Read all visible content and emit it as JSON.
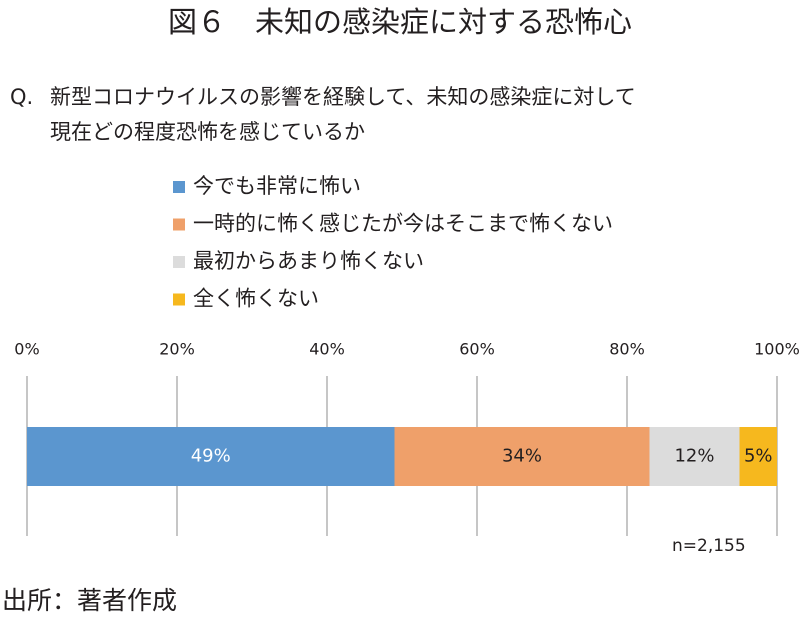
{
  "chart_data": {
    "type": "stacked_bar_horizontal",
    "title": "図６　未知の感染症に対する恐怖心",
    "question_prefix": "Q.",
    "question_lines": [
      "新型コロナウイルスの影響を経験して、未知の感染症に対して",
      "現在どの程度恐怖を感じているか"
    ],
    "categories": [
      null
    ],
    "series": [
      {
        "name": "今でも非常に怖い",
        "color": "#5b96cf",
        "values": [
          49
        ],
        "value_labels": [
          "49%"
        ]
      },
      {
        "name": "一時的に怖く感じたが今はそこまで怖くない",
        "color": "#efa06a",
        "values": [
          34
        ],
        "value_labels": [
          "34%"
        ]
      },
      {
        "name": "最初からあまり怖くない",
        "color": "#dcdcdc",
        "values": [
          12
        ],
        "value_labels": [
          "12%"
        ]
      },
      {
        "name": "全く怖くない",
        "color": "#f6b81e",
        "values": [
          5
        ],
        "value_labels": [
          "5%"
        ]
      }
    ],
    "xlim": [
      0,
      100
    ],
    "xticks": [
      {
        "value": 0,
        "label": "0%"
      },
      {
        "value": 20,
        "label": "20%"
      },
      {
        "value": 40,
        "label": "40%"
      },
      {
        "value": 60,
        "label": "60%"
      },
      {
        "value": 80,
        "label": "80%"
      },
      {
        "value": 100,
        "label": "100%"
      }
    ],
    "grid": true,
    "note": "n=2,155",
    "source": "出所：著者作成"
  }
}
